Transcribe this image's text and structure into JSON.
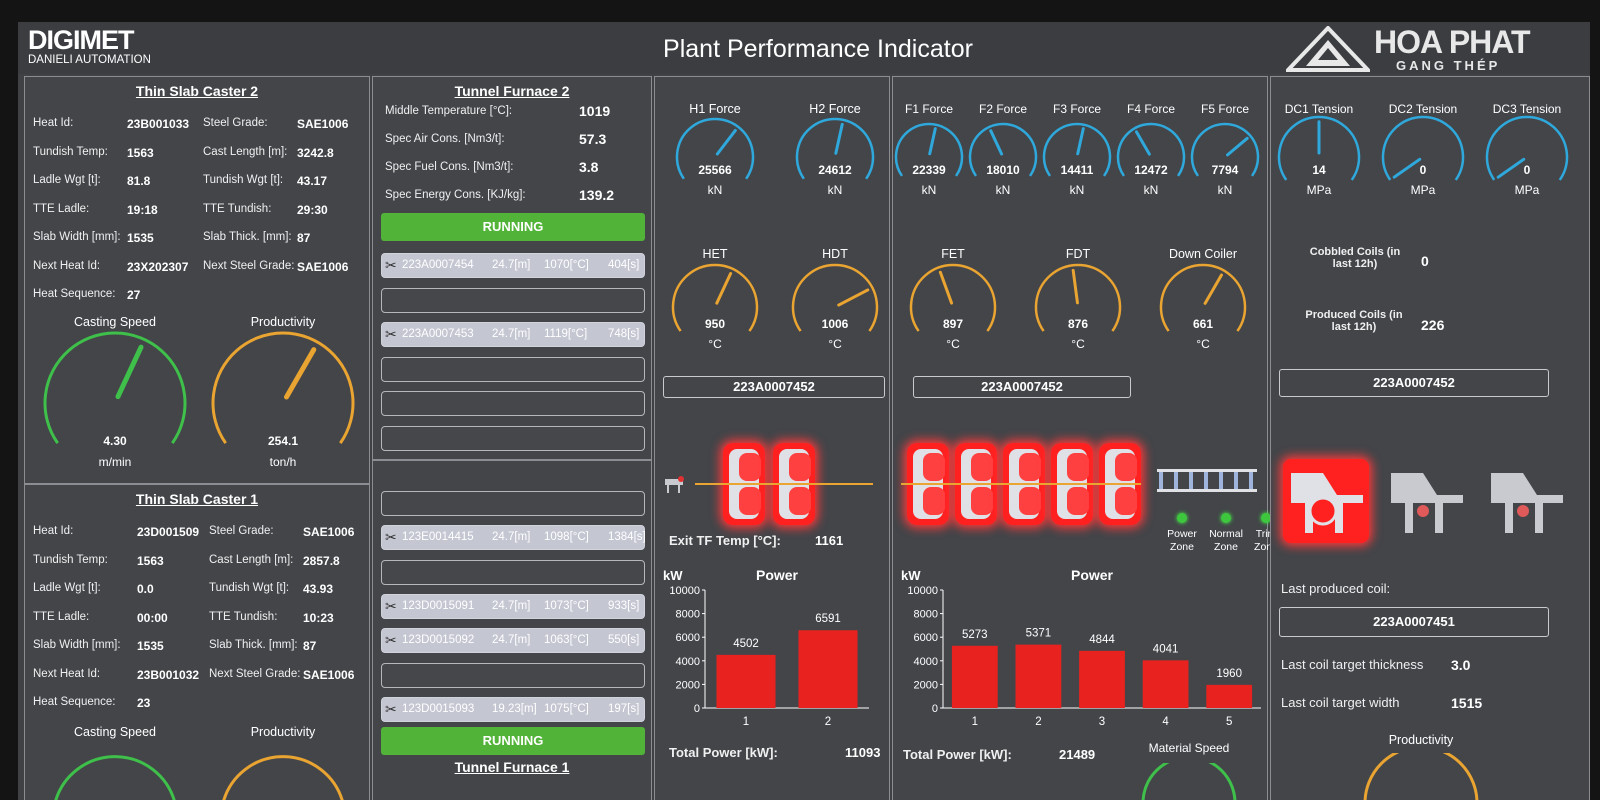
{
  "header": {
    "logo_top": "DIGIMET",
    "logo_bottom": "DANIELI AUTOMATION",
    "title": "Plant Performance Indicator",
    "brand_top": "HOA PHAT",
    "brand_bottom": "GANG THÉP"
  },
  "tsc2": {
    "title": "Thin Slab Caster 2",
    "fields": [
      {
        "label": "Heat Id:",
        "value": "23B001033"
      },
      {
        "label": "Steel Grade:",
        "value": "SAE1006"
      },
      {
        "label": "Tundish Temp:",
        "value": "1563"
      },
      {
        "label": "Cast Length [m]:",
        "value": "3242.8"
      },
      {
        "label": "Ladle Wgt [t]:",
        "value": "81.8"
      },
      {
        "label": "Tundish Wgt [t]:",
        "value": "43.17"
      },
      {
        "label": "TTE Ladle:",
        "value": "19:18"
      },
      {
        "label": "TTE Tundish:",
        "value": "29:30"
      },
      {
        "label": "Slab Width [mm]:",
        "value": "1535"
      },
      {
        "label": "Slab Thick. [mm]:",
        "value": "87"
      },
      {
        "label": "Next Heat Id:",
        "value": "23X202307"
      },
      {
        "label": "Next Steel Grade:",
        "value": "SAE1006"
      },
      {
        "label": "Heat Sequence:",
        "value": "27"
      }
    ],
    "casting_speed": {
      "title": "Casting Speed",
      "value": "4.30",
      "unit": "m/min",
      "fraction": 0.6
    },
    "productivity": {
      "title": "Productivity",
      "value": "254.1",
      "unit": "ton/h",
      "fraction": 0.62
    }
  },
  "tsc1": {
    "title": "Thin Slab Caster 1",
    "fields": [
      {
        "label": "Heat Id:",
        "value": "23D001509"
      },
      {
        "label": "Steel Grade:",
        "value": "SAE1006"
      },
      {
        "label": "Tundish Temp:",
        "value": "1563"
      },
      {
        "label": "Cast Length [m]:",
        "value": "2857.8"
      },
      {
        "label": "Ladle Wgt [t]:",
        "value": "0.0"
      },
      {
        "label": "Tundish Wgt [t]:",
        "value": "43.93"
      },
      {
        "label": "TTE Ladle:",
        "value": "00:00"
      },
      {
        "label": "TTE Tundish:",
        "value": "10:23"
      },
      {
        "label": "Slab Width [mm]:",
        "value": "1535"
      },
      {
        "label": "Slab Thick. [mm]:",
        "value": "87"
      },
      {
        "label": "Next Heat Id:",
        "value": "23B001032"
      },
      {
        "label": "Next Steel Grade:",
        "value": "SAE1006"
      },
      {
        "label": "Heat Sequence:",
        "value": "23"
      }
    ],
    "casting_speed_title": "Casting Speed",
    "productivity_title": "Productivity"
  },
  "tf2": {
    "title": "Tunnel Furnace 2",
    "fields": [
      {
        "label": "Middle Temperature [°C]:",
        "value": "1019"
      },
      {
        "label": "Spec Air Cons. [Nm3/t]:",
        "value": "57.3"
      },
      {
        "label": "Spec Fuel Cons. [Nm3/t]:",
        "value": "3.8"
      },
      {
        "label": "Spec Energy Cons. [KJ/kg]:",
        "value": "139.2"
      }
    ],
    "status": "RUNNING",
    "slots": [
      {
        "id": "223A0007454",
        "len": "24.7[m]",
        "temp": "1070[°C]",
        "time": "404[s]"
      },
      {
        "id": "",
        "len": "",
        "temp": "",
        "time": ""
      },
      {
        "id": "223A0007453",
        "len": "24.7[m]",
        "temp": "1119[°C]",
        "time": "748[s]"
      },
      {
        "id": "",
        "len": "",
        "temp": "",
        "time": ""
      },
      {
        "id": "",
        "len": "",
        "temp": "",
        "time": ""
      },
      {
        "id": "",
        "len": "",
        "temp": "",
        "time": ""
      }
    ]
  },
  "tf1": {
    "title": "Tunnel Furnace 1",
    "status": "RUNNING",
    "slots": [
      {
        "id": "",
        "len": "",
        "temp": "",
        "time": ""
      },
      {
        "id": "123E0014415",
        "len": "24.7[m]",
        "temp": "1098[°C]",
        "time": "1384[s]"
      },
      {
        "id": "",
        "len": "",
        "temp": "",
        "time": ""
      },
      {
        "id": "123D0015091",
        "len": "24.7[m]",
        "temp": "1073[°C]",
        "time": "933[s]"
      },
      {
        "id": "123D0015092",
        "len": "24.7[m]",
        "temp": "1063[°C]",
        "time": "550[s]"
      },
      {
        "id": "",
        "len": "",
        "temp": "",
        "time": ""
      },
      {
        "id": "123D0015093",
        "len": "19.23[m]",
        "temp": "1075[°C]",
        "time": "197[s]"
      }
    ]
  },
  "roughing": {
    "forces": [
      {
        "title": "H1 Force",
        "value": "25566",
        "unit": "kN",
        "fraction": 0.65
      },
      {
        "title": "H2 Force",
        "value": "24612",
        "unit": "kN",
        "fraction": 0.55
      }
    ],
    "temps": [
      {
        "title": "HET",
        "value": "950",
        "unit": "°C",
        "fraction": 0.6
      },
      {
        "title": "HDT",
        "value": "1006",
        "unit": "°C",
        "fraction": 0.75
      }
    ],
    "coil_id": "223A0007452",
    "exit_label": "Exit TF Temp [°C]:",
    "exit_value": "1161",
    "power_total_label": "Total Power [kW]:",
    "power_total": "11093"
  },
  "finishing": {
    "forces": [
      {
        "title": "F1 Force",
        "value": "22339",
        "unit": "kN",
        "fraction": 0.55
      },
      {
        "title": "F2 Force",
        "value": "18010",
        "unit": "kN",
        "fraction": 0.4
      },
      {
        "title": "F3 Force",
        "value": "14411",
        "unit": "kN",
        "fraction": 0.55
      },
      {
        "title": "F4 Force",
        "value": "12472",
        "unit": "kN",
        "fraction": 0.38
      },
      {
        "title": "F5 Force",
        "value": "7794",
        "unit": "kN",
        "fraction": 0.7
      }
    ],
    "temps": [
      {
        "title": "FET",
        "value": "897",
        "unit": "°C",
        "fraction": 0.42
      },
      {
        "title": "FDT",
        "value": "876",
        "unit": "°C",
        "fraction": 0.47
      },
      {
        "title": "Down Coiler",
        "value": "661",
        "unit": "°C",
        "fraction": 0.62
      }
    ],
    "coil_id": "223A0007452",
    "zones": [
      "Power Zone",
      "Normal Zone",
      "Trim Zone"
    ],
    "power_total_label": "Total Power [kW]:",
    "power_total": "21489",
    "material_speed_title": "Material Speed"
  },
  "coiler": {
    "tensions": [
      {
        "title": "DC1 Tension",
        "value": "14",
        "unit": "MPa",
        "fraction": 0.5
      },
      {
        "title": "DC2 Tension",
        "value": "0",
        "unit": "MPa",
        "fraction": 0.0
      },
      {
        "title": "DC3 Tension",
        "value": "0",
        "unit": "MPa",
        "fraction": 0.0
      }
    ],
    "cobbled_label": "Cobbled Coils (in last 12h)",
    "cobbled_value": "0",
    "produced_label": "Produced Coils (in last 12h)",
    "produced_value": "226",
    "coil_id": "223A0007452",
    "last_coil_label": "Last produced coil:",
    "last_coil_id": "223A0007451",
    "thickness_label": "Last coil target thickness",
    "thickness_value": "3.0",
    "width_label": "Last coil target width",
    "width_value": "1515",
    "productivity_title": "Productivity"
  },
  "chart_data": [
    {
      "type": "bar",
      "title": "Power",
      "ylabel": "kW",
      "categories": [
        "1",
        "2"
      ],
      "values": [
        4502,
        6591
      ],
      "ylim": [
        0,
        10000
      ],
      "yticks": [
        "0",
        "2000",
        "4000",
        "6000",
        "8000",
        "10000"
      ],
      "color": "#e8231f"
    },
    {
      "type": "bar",
      "title": "Power",
      "ylabel": "kW",
      "categories": [
        "1",
        "2",
        "3",
        "4",
        "5"
      ],
      "values": [
        5273,
        5371,
        4844,
        4041,
        1960
      ],
      "ylim": [
        0,
        10000
      ],
      "yticks": [
        "0",
        "2000",
        "4000",
        "6000",
        "8000",
        "10000"
      ],
      "color": "#e8231f"
    }
  ],
  "colors": {
    "green_gauge": "#3fc04a",
    "yellow_gauge": "#e9a431",
    "blue_gauge": "#2fa8dc",
    "running": "#52b339",
    "stand_red": "#ff2020"
  }
}
